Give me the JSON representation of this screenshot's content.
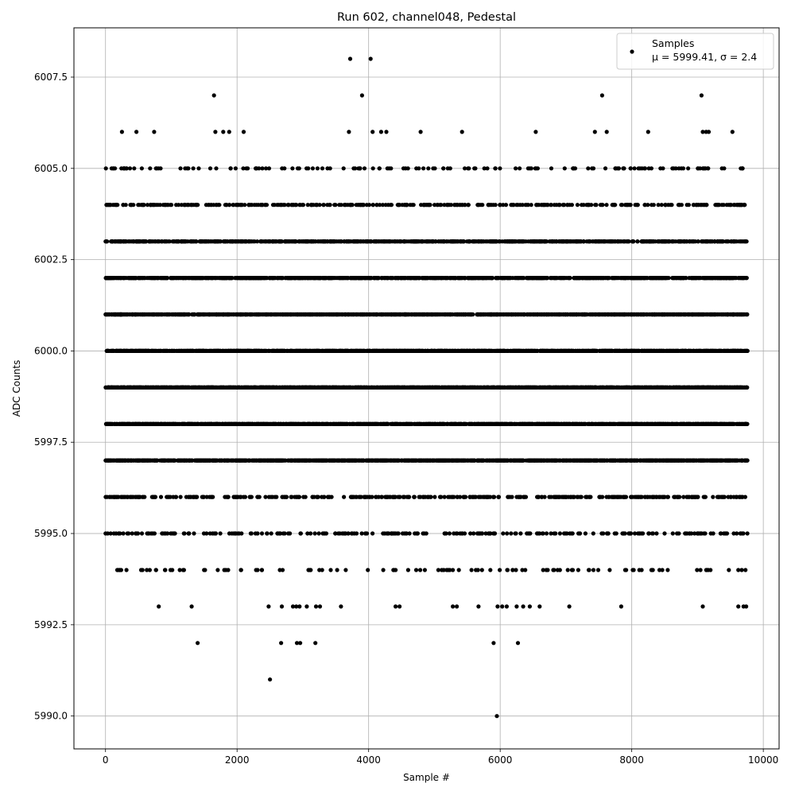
{
  "chart_data": {
    "type": "scatter",
    "title": "Run 602, channel048, Pedestal",
    "xlabel": "Sample #",
    "ylabel": "ADC Counts",
    "xlim": [
      -480,
      10240
    ],
    "ylim": [
      5989.1,
      6008.85
    ],
    "xticks": [
      0,
      2000,
      4000,
      6000,
      8000,
      10000
    ],
    "yticks": [
      5990.0,
      5992.5,
      5995.0,
      5997.5,
      6000.0,
      6002.5,
      6005.0,
      6007.5
    ],
    "xtick_labels": [
      "0",
      "2000",
      "4000",
      "6000",
      "8000",
      "10000"
    ],
    "ytick_labels": [
      "5990.0",
      "5992.5",
      "5995.0",
      "5997.5",
      "6000.0",
      "6002.5",
      "6005.0",
      "6007.5"
    ],
    "grid": true,
    "legend_position": "top-right",
    "legend": {
      "label": "Samples",
      "stats": "μ = 5999.41, σ = 2.4"
    },
    "marker_color": "#000000",
    "n_samples_approx": 9760,
    "value_distribution": [
      {
        "adc": 5997,
        "approx_count": 1700
      },
      {
        "adc": 5998,
        "approx_count": 1800
      },
      {
        "adc": 5999,
        "approx_count": 1850
      },
      {
        "adc": 6000,
        "approx_count": 1650
      },
      {
        "adc": 6001,
        "approx_count": 1500
      },
      {
        "adc": 6002,
        "approx_count": 1300
      },
      {
        "adc": 6003,
        "approx_count": 1000
      },
      {
        "adc": 6004,
        "approx_count": 400
      },
      {
        "adc": 5996,
        "approx_count": 420
      },
      {
        "adc": 6005,
        "approx_count": 150
      },
      {
        "adc": 5995,
        "approx_count": 260
      },
      {
        "adc": 5994,
        "approx_count": 110
      },
      {
        "adc": 5993,
        "approx_count": 55
      },
      {
        "adc": 6006,
        "approx_count": 20
      }
    ],
    "series": [
      {
        "name": "Samples",
        "sparse_points": [
          {
            "x": 3720,
            "y": 6008
          },
          {
            "x": 4030,
            "y": 6008
          },
          {
            "x": 1650,
            "y": 6007
          },
          {
            "x": 3900,
            "y": 6007
          },
          {
            "x": 7550,
            "y": 6007
          },
          {
            "x": 9060,
            "y": 6007
          },
          {
            "x": 250,
            "y": 6006
          },
          {
            "x": 470,
            "y": 6006
          },
          {
            "x": 740,
            "y": 6006
          },
          {
            "x": 1670,
            "y": 6006
          },
          {
            "x": 1790,
            "y": 6006
          },
          {
            "x": 1880,
            "y": 6006
          },
          {
            "x": 2100,
            "y": 6006
          },
          {
            "x": 3700,
            "y": 6006
          },
          {
            "x": 4060,
            "y": 6006
          },
          {
            "x": 4190,
            "y": 6006
          },
          {
            "x": 4270,
            "y": 6006
          },
          {
            "x": 4790,
            "y": 6006
          },
          {
            "x": 5420,
            "y": 6006
          },
          {
            "x": 6540,
            "y": 6006
          },
          {
            "x": 7440,
            "y": 6006
          },
          {
            "x": 7620,
            "y": 6006
          },
          {
            "x": 8250,
            "y": 6006
          },
          {
            "x": 9080,
            "y": 6006
          },
          {
            "x": 9130,
            "y": 6006
          },
          {
            "x": 9170,
            "y": 6006
          },
          {
            "x": 9530,
            "y": 6006
          },
          {
            "x": 810,
            "y": 5993
          },
          {
            "x": 1310,
            "y": 5993
          },
          {
            "x": 2480,
            "y": 5993
          },
          {
            "x": 2680,
            "y": 5993
          },
          {
            "x": 2850,
            "y": 5993
          },
          {
            "x": 2900,
            "y": 5993
          },
          {
            "x": 2950,
            "y": 5993
          },
          {
            "x": 3060,
            "y": 5993
          },
          {
            "x": 3200,
            "y": 5993
          },
          {
            "x": 3260,
            "y": 5993
          },
          {
            "x": 3580,
            "y": 5993
          },
          {
            "x": 4410,
            "y": 5993
          },
          {
            "x": 4470,
            "y": 5993
          },
          {
            "x": 5280,
            "y": 5993
          },
          {
            "x": 5340,
            "y": 5993
          },
          {
            "x": 5670,
            "y": 5993
          },
          {
            "x": 5960,
            "y": 5993
          },
          {
            "x": 6030,
            "y": 5993
          },
          {
            "x": 6100,
            "y": 5993
          },
          {
            "x": 6250,
            "y": 5993
          },
          {
            "x": 6350,
            "y": 5993
          },
          {
            "x": 6450,
            "y": 5993
          },
          {
            "x": 6600,
            "y": 5993
          },
          {
            "x": 7050,
            "y": 5993
          },
          {
            "x": 7840,
            "y": 5993
          },
          {
            "x": 9080,
            "y": 5993
          },
          {
            "x": 9620,
            "y": 5993
          },
          {
            "x": 9700,
            "y": 5993
          },
          {
            "x": 9740,
            "y": 5993
          },
          {
            "x": 1400,
            "y": 5992
          },
          {
            "x": 2670,
            "y": 5992
          },
          {
            "x": 2910,
            "y": 5992
          },
          {
            "x": 2960,
            "y": 5992
          },
          {
            "x": 3190,
            "y": 5992
          },
          {
            "x": 5900,
            "y": 5992
          },
          {
            "x": 6270,
            "y": 5992
          },
          {
            "x": 2500,
            "y": 5991
          },
          {
            "x": 5950,
            "y": 5990
          }
        ]
      }
    ]
  }
}
